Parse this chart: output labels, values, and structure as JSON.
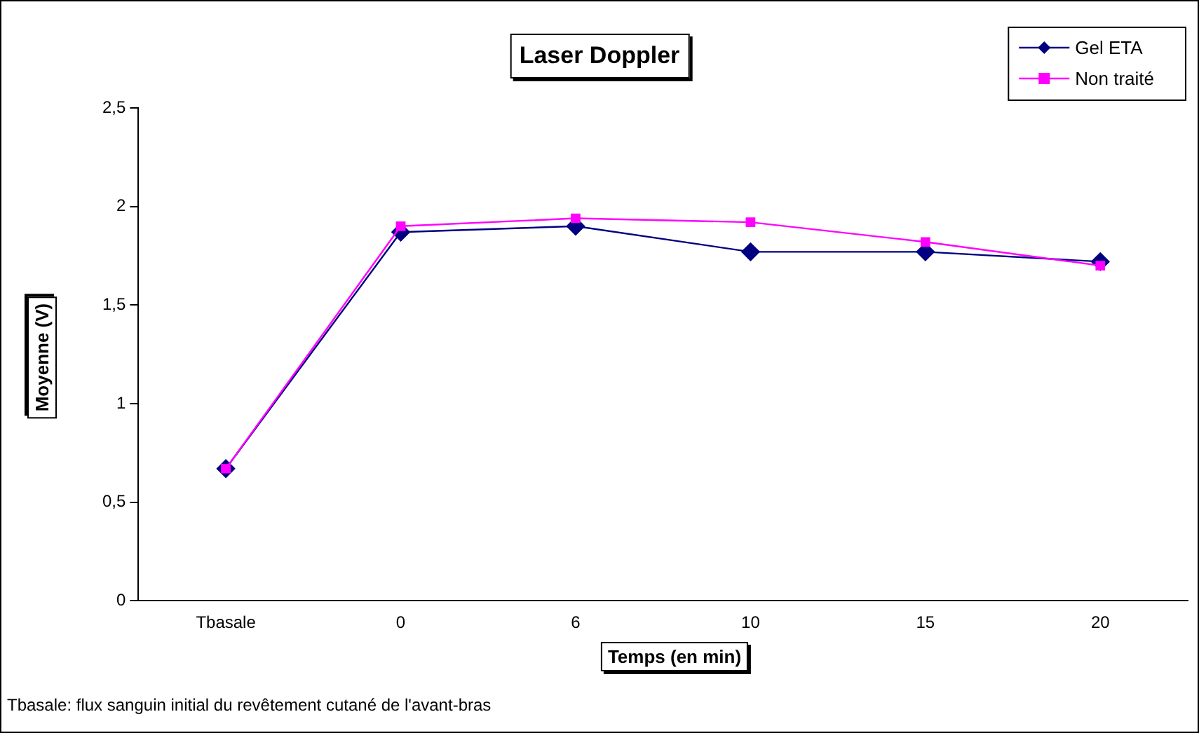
{
  "chart_data": {
    "type": "line",
    "title": "Laser Doppler",
    "xlabel": "Temps (en min)",
    "ylabel": "Moyenne (V)",
    "categories": [
      "Tbasale",
      "0",
      "6",
      "10",
      "15",
      "20"
    ],
    "series": [
      {
        "name": "Gel ETA",
        "color": "#000080",
        "marker": "diamond",
        "values": [
          0.67,
          1.87,
          1.9,
          1.77,
          1.77,
          1.72
        ]
      },
      {
        "name": "Non traité",
        "color": "#ff00ff",
        "marker": "square",
        "values": [
          0.67,
          1.9,
          1.94,
          1.92,
          1.82,
          1.7
        ]
      }
    ],
    "ylim": [
      0,
      2.5
    ],
    "yticks": [
      {
        "value": 0,
        "label": "0"
      },
      {
        "value": 0.5,
        "label": "0,5"
      },
      {
        "value": 1,
        "label": "1"
      },
      {
        "value": 1.5,
        "label": "1,5"
      },
      {
        "value": 2,
        "label": "2"
      },
      {
        "value": 2.5,
        "label": "2,5"
      }
    ],
    "grid": false,
    "legend": "top right",
    "annotations": [
      "Tbasale: flux sanguin initial du revêtement cutané de l'avant-bras"
    ]
  }
}
